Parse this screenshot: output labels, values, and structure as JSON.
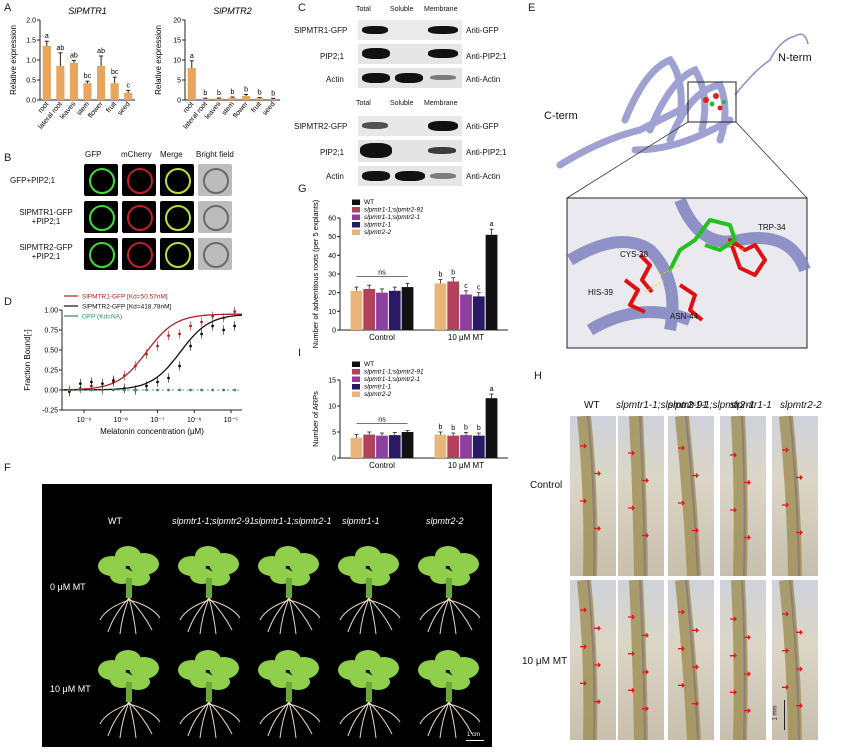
{
  "figure_panels": [
    "A",
    "B",
    "C",
    "D",
    "E",
    "F",
    "G",
    "H",
    "I"
  ],
  "chart_data": [
    {
      "panel": "A",
      "type": "bar",
      "title": "SlPMTR1",
      "ylabel": "Relative expression",
      "ylim": [
        0,
        2.0
      ],
      "yticks": [
        "0.0",
        "0.5",
        "1.0",
        "1.5",
        "2.0"
      ],
      "categories": [
        "root",
        "lateral root",
        "leaves",
        "stem",
        "flower",
        "fruit",
        "seed"
      ],
      "values": [
        1.35,
        0.85,
        0.93,
        0.42,
        0.85,
        0.42,
        0.18
      ],
      "errors": [
        0.12,
        0.33,
        0.06,
        0.05,
        0.25,
        0.15,
        0.06
      ],
      "letters": [
        "a",
        "ab",
        "ab",
        "bc",
        "ab",
        "bc",
        "c"
      ],
      "color": "#e8a55c"
    },
    {
      "panel": "A",
      "type": "bar",
      "title": "SlPMTR2",
      "ylabel": "Relative expression",
      "ylim": [
        0,
        20
      ],
      "yticks": [
        "0",
        "5",
        "10",
        "15",
        "20"
      ],
      "categories": [
        "root",
        "lateral root",
        "leaves",
        "stem",
        "flower",
        "fruit",
        "seed"
      ],
      "values": [
        8.0,
        0.35,
        0.4,
        0.55,
        1.0,
        0.45,
        0.3
      ],
      "errors": [
        1.8,
        0.1,
        0.1,
        0.2,
        0.4,
        0.15,
        0.1
      ],
      "letters": [
        "a",
        "b",
        "b",
        "b",
        "b",
        "b",
        "b"
      ],
      "color": "#e8a55c"
    },
    {
      "panel": "D",
      "type": "scatter",
      "ylabel": "Fraction Bound[-]",
      "xlabel": "Melatonin concentration (μM)",
      "ylim": [
        -0.25,
        1.0
      ],
      "yticks": [
        "-0.25",
        "0.00",
        "0.25",
        "0.50",
        "0.75",
        "1.00"
      ],
      "xticks": [
        "10⁻⁹",
        "10⁻⁸",
        "10⁻⁷",
        "10⁻⁶",
        "10⁻⁵"
      ],
      "series": [
        {
          "name": "SlPMTR1-GFP [Kd=50.57nM]",
          "color": "#b22222",
          "x": [
            -9.4,
            -9.1,
            -8.8,
            -8.5,
            -8.2,
            -7.9,
            -7.6,
            -7.3,
            -7.0,
            -6.7,
            -6.4,
            -6.1,
            -5.8,
            -5.5,
            -5.2,
            -4.9
          ],
          "y": [
            0.0,
            0.02,
            0.05,
            0.0,
            0.1,
            0.18,
            0.3,
            0.45,
            0.55,
            0.68,
            0.7,
            0.8,
            0.85,
            0.92,
            0.9,
            0.98
          ]
        },
        {
          "name": "SlPMTR2-GFP [Kd=418.78nM]",
          "color": "#111111",
          "x": [
            -9.4,
            -9.1,
            -8.8,
            -8.5,
            -8.2,
            -7.9,
            -7.6,
            -7.3,
            -7.0,
            -6.7,
            -6.4,
            -6.1,
            -5.8,
            -5.5,
            -5.2,
            -4.9
          ],
          "y": [
            -0.02,
            0.08,
            0.1,
            0.08,
            0.12,
            0.02,
            0.0,
            0.05,
            0.1,
            0.15,
            0.3,
            0.55,
            0.7,
            0.8,
            0.75,
            0.8
          ]
        },
        {
          "name": "GFP (Kd=NA)",
          "color": "#2e8b57",
          "x": [
            -9.4,
            -9.1,
            -8.8,
            -8.5,
            -8.2,
            -7.9,
            -7.6,
            -7.3,
            -7.0,
            -6.7,
            -6.4,
            -6.1,
            -5.8,
            -5.5,
            -5.2,
            -4.9
          ],
          "y": [
            0,
            0,
            0,
            0,
            0,
            0,
            0,
            0,
            0,
            0,
            0,
            0,
            0,
            0,
            0,
            0
          ]
        }
      ]
    },
    {
      "panel": "G",
      "type": "bar",
      "ylabel": "Number of adventitous roots (per 5 explants)",
      "ylim": [
        0,
        60
      ],
      "yticks": [
        "0",
        "10",
        "20",
        "30",
        "40",
        "50",
        "60"
      ],
      "categories": [
        "Control",
        "10 μM MT"
      ],
      "series": [
        {
          "name": "WT",
          "color": "#111111",
          "values": [
            23,
            51
          ],
          "errors": [
            2,
            3
          ]
        },
        {
          "name": "slpmtr1-1;slpmtr2-91",
          "color": "#b2415c",
          "values": [
            22,
            26
          ],
          "errors": [
            2,
            2
          ]
        },
        {
          "name": "slpmtr1-1;slpmtr2-1",
          "color": "#8c3f9e",
          "values": [
            20,
            19
          ],
          "errors": [
            2,
            2
          ]
        },
        {
          "name": "slpmtr1-1",
          "color": "#2a1a66",
          "values": [
            21,
            18
          ],
          "errors": [
            2,
            2
          ]
        },
        {
          "name": "slpmtr2-2",
          "color": "#e8b67a",
          "values": [
            21,
            25
          ],
          "errors": [
            2,
            2
          ]
        }
      ],
      "order": [
        4,
        1,
        2,
        3,
        0
      ],
      "annotations": {
        "Control": "ns",
        "10 μM MT": [
          "b",
          "b",
          "c",
          "c",
          "a"
        ]
      }
    },
    {
      "panel": "I",
      "type": "bar",
      "ylabel": "Number of ARPs",
      "ylim": [
        0,
        15
      ],
      "yticks": [
        "0",
        "5",
        "10",
        "15"
      ],
      "categories": [
        "Control",
        "10 μM MT"
      ],
      "series": [
        {
          "name": "WT",
          "color": "#111111",
          "values": [
            5,
            11.5
          ],
          "errors": [
            0.3,
            0.8
          ]
        },
        {
          "name": "slpmtr1-1;slpmtr2-91",
          "color": "#b2415c",
          "values": [
            4.5,
            4.3
          ],
          "errors": [
            0.5,
            0.5
          ]
        },
        {
          "name": "slpmtr1-1;slpmtr2-1",
          "color": "#8c3f9e",
          "values": [
            4.3,
            4.4
          ],
          "errors": [
            0.5,
            0.5
          ]
        },
        {
          "name": "slpmtr1-1",
          "color": "#2a1a66",
          "values": [
            4.4,
            4.3
          ],
          "errors": [
            0.5,
            0.5
          ]
        },
        {
          "name": "slpmtr2-2",
          "color": "#e8b67a",
          "values": [
            3.9,
            4.5
          ],
          "errors": [
            0.6,
            0.5
          ]
        }
      ],
      "order": [
        4,
        1,
        2,
        3,
        0
      ],
      "annotations": {
        "Control": "ns",
        "10 μM MT": [
          "b",
          "b",
          "b",
          "b",
          "a"
        ]
      }
    }
  ],
  "panelB": {
    "col_headers": [
      "GFP",
      "mCherry",
      "Merge",
      "Bright field"
    ],
    "rows": [
      "GFP+PIP2;1",
      "SlPMTR1-GFP\n+PIP2;1",
      "SlPMTR2-GFP\n+PIP2;1"
    ]
  },
  "panelC": {
    "col_headers": [
      "Total",
      "Soluble",
      "Membrane"
    ],
    "block1": {
      "rows": [
        "SlPMTR1-GFP",
        "PIP2;1",
        "Actin"
      ],
      "antibodies": [
        "Anti-GFP",
        "Anti-PIP2;1",
        "Anti-Actin"
      ]
    },
    "block2": {
      "rows": [
        "SlPMTR2-GFP",
        "PIP2;1",
        "Actin"
      ],
      "antibodies": [
        "Anti-GFP",
        "Anti-PIP2;1",
        "Anti-Actin"
      ]
    }
  },
  "panelE": {
    "n_term": "N-term",
    "c_term": "C-term",
    "residues": [
      "TRP-34",
      "CYS-38",
      "HIS-39",
      "ASN-44"
    ]
  },
  "panelF": {
    "genotypes": [
      "WT",
      "slpmtr1-1;slpmtr2-91",
      "slpmtr1-1;slpmtr2-1",
      "slpmtr1-1",
      "slpmtr2-2"
    ],
    "rows": [
      "0 μM MT",
      "10 μM MT"
    ],
    "scale": "1 cm"
  },
  "panelH": {
    "genotypes": [
      "WT",
      "slpmtr1-1;slpmtr2-91",
      "slpmtr1-1;slpmtr2-1",
      "slpmtr1-1",
      "slpmtr2-2"
    ],
    "rows": [
      "Control",
      "10 μM MT"
    ],
    "scale": "1 mm"
  }
}
